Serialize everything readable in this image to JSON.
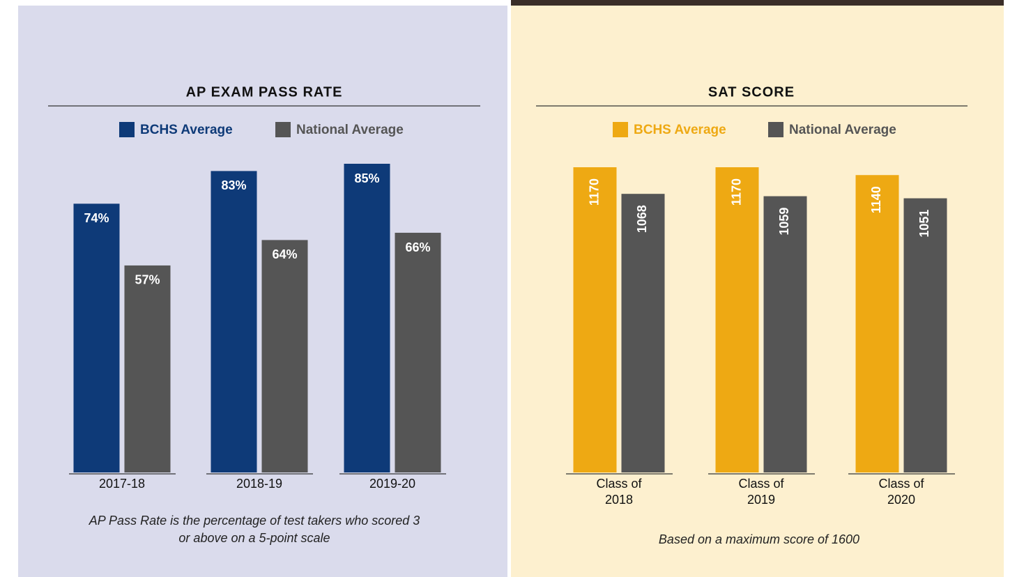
{
  "chart_data": [
    {
      "type": "bar",
      "title": "AP EXAM PASS RATE",
      "categories": [
        "2017-18",
        "2018-19",
        "2019-20"
      ],
      "series": [
        {
          "name": "BCHS Average",
          "color": "#0e3a78",
          "values": [
            74,
            83,
            85
          ],
          "value_labels": [
            "74%",
            "83%",
            "85%"
          ]
        },
        {
          "name": "National Average",
          "color": "#555555",
          "values": [
            57,
            64,
            66
          ],
          "value_labels": [
            "57%",
            "64%",
            "66%"
          ]
        }
      ],
      "note": "AP Pass Rate is the percentage of test takers who scored 3 or above on a 5-point scale"
    },
    {
      "type": "bar",
      "title": "SAT SCORE",
      "categories": [
        "Class of 2018",
        "Class of 2019",
        "Class of 2020"
      ],
      "series": [
        {
          "name": "BCHS Average",
          "color": "#eea913",
          "values": [
            1170,
            1170,
            1140
          ]
        },
        {
          "name": "National Average",
          "color": "#555555",
          "values": [
            1068,
            1059,
            1051
          ]
        }
      ],
      "note": "Based on a maximum score of 1600"
    }
  ]
}
